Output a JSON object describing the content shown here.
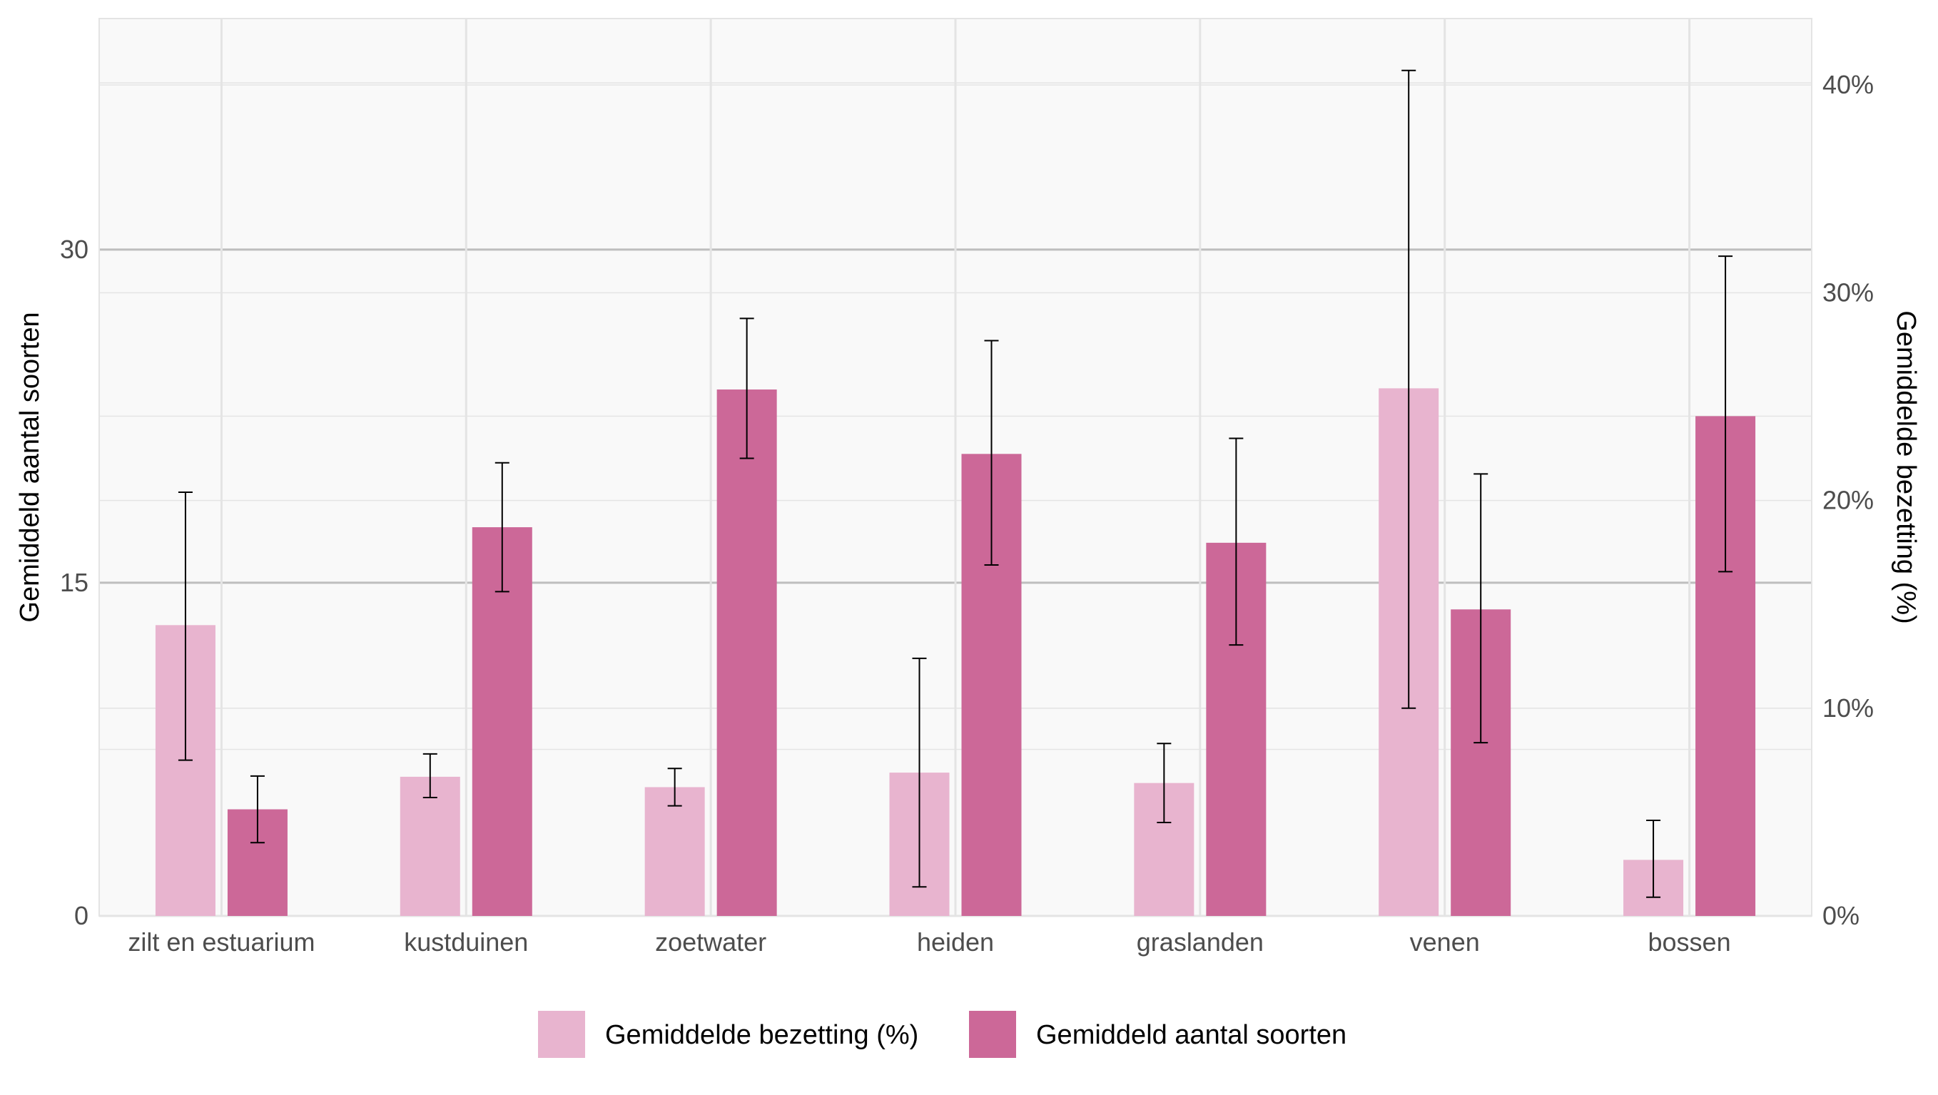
{
  "chart_data": {
    "type": "bar",
    "categories": [
      "zilt en estuarium",
      "kustduinen",
      "zoetwater",
      "heiden",
      "graslanden",
      "venen",
      "bossen"
    ],
    "series": [
      {
        "name": "Gemiddelde bezetting (%)",
        "axis": "right",
        "color": "#e8b4cf",
        "values": [
          14.0,
          6.7,
          6.2,
          6.9,
          6.4,
          25.4,
          2.7
        ],
        "err_low": [
          7.5,
          5.7,
          5.3,
          1.4,
          4.5,
          10.0,
          0.9
        ],
        "err_high": [
          20.4,
          7.8,
          7.1,
          12.4,
          8.3,
          40.7,
          4.6
        ]
      },
      {
        "name": "Gemiddeld aantal soorten",
        "axis": "left",
        "color": "#cc6898",
        "values": [
          4.8,
          17.5,
          23.7,
          20.8,
          16.8,
          13.8,
          22.5
        ],
        "err_low": [
          3.3,
          14.6,
          20.6,
          15.8,
          12.2,
          7.8,
          15.5
        ],
        "err_high": [
          6.3,
          20.4,
          26.9,
          25.9,
          21.5,
          19.9,
          29.7
        ]
      }
    ],
    "ylabel": "Gemiddeld aantal soorten",
    "ylabel_right": "Gemiddelde bezetting (%)",
    "xlabel": "",
    "ylim": [
      0,
      40.4
    ],
    "ylim_right": [
      0,
      43.2
    ],
    "yticks": [
      0,
      15,
      30
    ],
    "yticks_right": [
      0,
      10,
      20,
      30,
      40
    ],
    "ytick_labels": [
      "0",
      "15",
      "30"
    ],
    "ytick_labels_right": [
      "0%",
      "10%",
      "20%",
      "30%",
      "40%"
    ],
    "grid": true,
    "legend": {
      "position": "bottom",
      "entries": [
        "Gemiddelde bezetting (%)",
        "Gemiddeld aantal soorten"
      ]
    },
    "colors": {
      "panel_background": "#f9f9f9",
      "major_grid": "#bebebe",
      "minor_grid": "#e4e4e4",
      "error_bar": "#000000"
    }
  }
}
